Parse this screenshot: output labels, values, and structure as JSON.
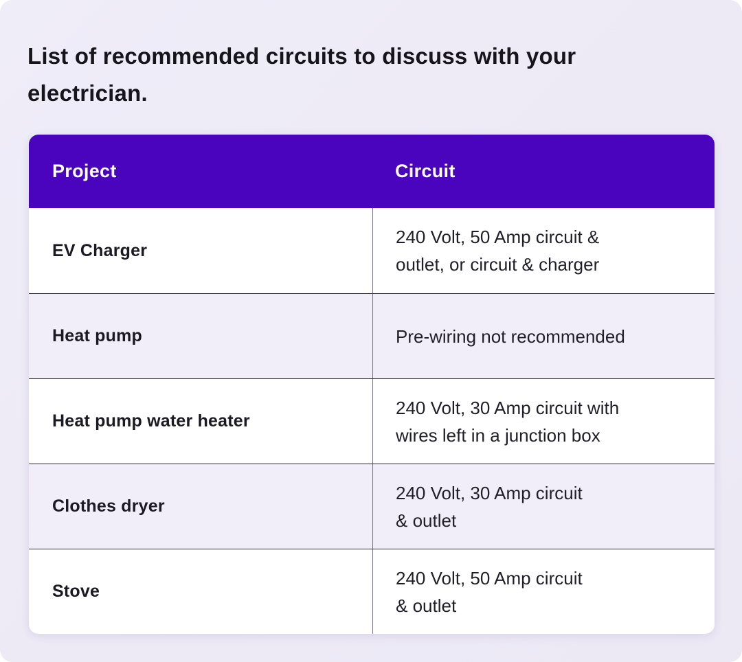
{
  "page": {
    "title": "List of recommended circuits to discuss with your electrician."
  },
  "table": {
    "headers": {
      "project": "Project",
      "circuit": "Circuit"
    },
    "rows": [
      {
        "project": "EV Charger",
        "circuit": "240 Volt, 50 Amp circuit &\noutlet, or circuit & charger"
      },
      {
        "project": "Heat pump",
        "circuit": "Pre-wiring not recommended"
      },
      {
        "project": "Heat pump water heater",
        "circuit": "240 Volt, 30 Amp circuit with\nwires left in a junction box"
      },
      {
        "project": "Clothes dryer",
        "circuit": "240 Volt, 30 Amp circuit\n& outlet"
      },
      {
        "project": "Stove",
        "circuit": "240 Volt, 50 Amp circuit\n& outlet"
      }
    ]
  },
  "colors": {
    "header_bg": "#4A04BE",
    "header_text": "#FFFFFF",
    "page_bg": "#EDEAF6",
    "row_bg": "#FFFFFF",
    "row_alt_bg": "#F1EEF9",
    "row_divider": "#2B2933",
    "column_divider": "#76737E",
    "title_text": "#17151C",
    "body_text": "#201E26"
  }
}
